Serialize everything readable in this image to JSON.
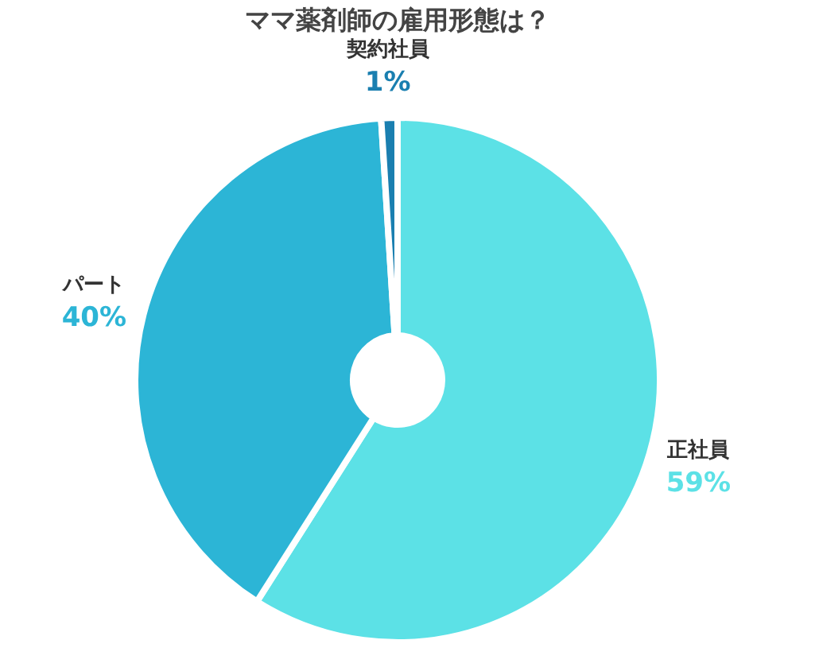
{
  "chart_data": {
    "type": "donut",
    "title": "ママ薬剤師の雇用形態は？",
    "categories": [
      "正社員",
      "パート",
      "契約社員"
    ],
    "values": [
      59,
      40,
      1
    ],
    "value_labels": [
      "59%",
      "40%",
      "1%"
    ],
    "colors": [
      "#5ce1e6",
      "#2cb5d6",
      "#1a7fb0"
    ],
    "legend": false
  }
}
